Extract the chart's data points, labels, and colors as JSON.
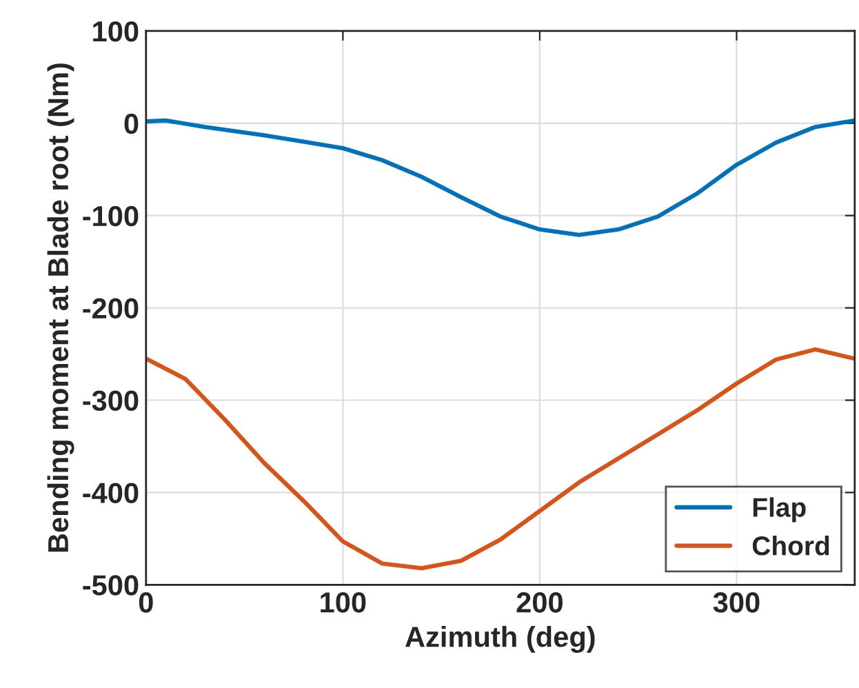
{
  "chart_data": {
    "type": "line",
    "xlabel": "Azimuth (deg)",
    "ylabel": "Bending moment at Blade root (Nm)",
    "x": [
      0,
      10,
      30,
      60,
      80,
      100,
      120,
      140,
      160,
      180,
      200,
      220,
      240,
      260,
      280,
      300,
      320,
      340,
      360
    ],
    "series": [
      {
        "name": "Flap",
        "color": "#0072bd",
        "values": [
          2,
          3,
          -4,
          -13,
          -20,
          -27,
          -40,
          -58,
          -80,
          -101,
          -115,
          -121,
          -115,
          -101,
          -76,
          -45,
          -21,
          -4,
          3
        ]
      },
      {
        "name": "Chord",
        "color": "#d95319",
        "x": [
          0,
          20,
          40,
          60,
          80,
          100,
          120,
          140,
          160,
          180,
          200,
          220,
          240,
          260,
          280,
          300,
          320,
          340,
          360
        ],
        "values": [
          -255,
          -277,
          -321,
          -368,
          -409,
          -453,
          -477,
          -482,
          -474,
          -451,
          -420,
          -389,
          -363,
          -337,
          -311,
          -282,
          -256,
          -245,
          -255
        ]
      }
    ],
    "xlim": [
      0,
      360
    ],
    "xticks": [
      0,
      100,
      200,
      300
    ],
    "ylim": [
      -500,
      100
    ],
    "yticks": [
      -500,
      -400,
      -300,
      -200,
      -100,
      0,
      100
    ],
    "grid": true,
    "legend": "bottom right",
    "line_style": "solid",
    "marker": "none"
  }
}
